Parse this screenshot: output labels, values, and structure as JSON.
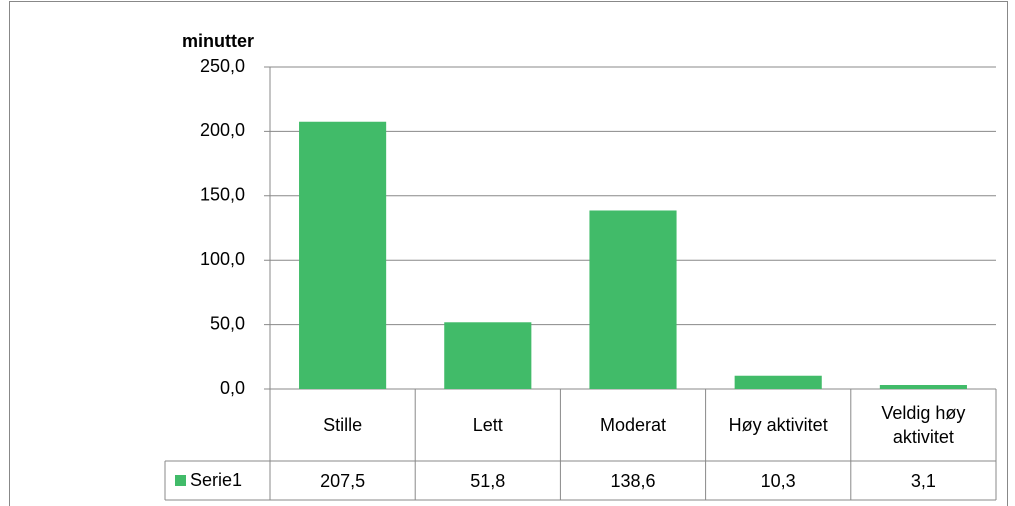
{
  "chart_data": {
    "type": "bar",
    "y_label": "minutter",
    "categories": [
      "Stille",
      "Lett",
      "Moderat",
      "Høy aktivitet",
      "Veldig høy aktivitet"
    ],
    "series": [
      {
        "name": "Serie1",
        "color": "#41bb69",
        "values": [
          207.5,
          51.8,
          138.6,
          10.3,
          3.1
        ],
        "value_labels": [
          "207,5",
          "51,8",
          "138,6",
          "10,3",
          "3,1"
        ]
      }
    ],
    "ylim": [
      0,
      250
    ],
    "yticks": [
      {
        "value": 0,
        "label": "0,0"
      },
      {
        "value": 50,
        "label": "50,0"
      },
      {
        "value": 100,
        "label": "100,0"
      },
      {
        "value": 150,
        "label": "150,0"
      },
      {
        "value": 200,
        "label": "200,0"
      },
      {
        "value": 250,
        "label": "250,0"
      }
    ],
    "grid": true,
    "data_table": true
  }
}
